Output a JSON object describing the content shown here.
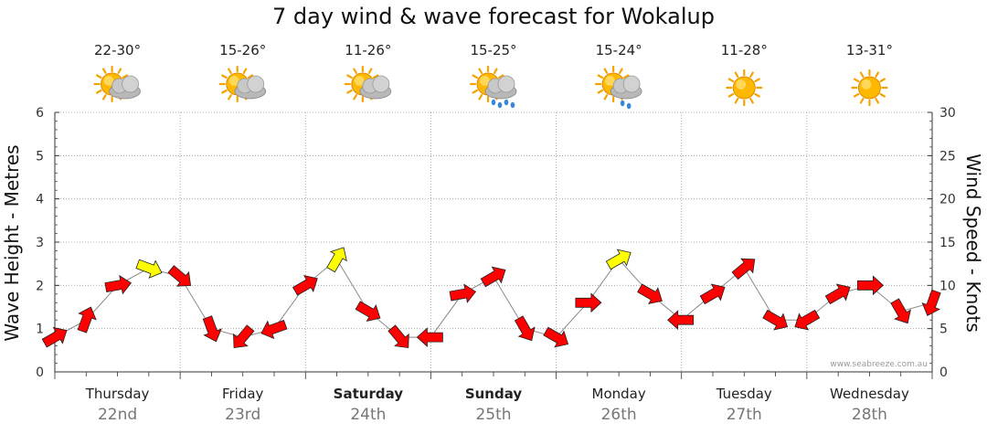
{
  "title": "7 day wind & wave forecast for Wokalup",
  "credit": "www.seabreeze.com.au",
  "colors": {
    "strong_wind": "#ff0000",
    "light_wind": "#ffff00",
    "arrow_outline": "#222222",
    "grid": "#999999",
    "wave_line": "#888888"
  },
  "days": [
    {
      "name": "Thursday",
      "date": "22nd",
      "bold": false,
      "temp": "22-30°",
      "icon": "partly-cloudy-icon"
    },
    {
      "name": "Friday",
      "date": "23rd",
      "bold": false,
      "temp": "15-26°",
      "icon": "partly-cloudy-icon"
    },
    {
      "name": "Saturday",
      "date": "24th",
      "bold": true,
      "temp": "11-26°",
      "icon": "partly-cloudy-icon"
    },
    {
      "name": "Sunday",
      "date": "25th",
      "bold": true,
      "temp": "15-25°",
      "icon": "showers-icon"
    },
    {
      "name": "Monday",
      "date": "26th",
      "bold": false,
      "temp": "15-24°",
      "icon": "light-showers-icon"
    },
    {
      "name": "Tuesday",
      "date": "27th",
      "bold": false,
      "temp": "11-28°",
      "icon": "sunny-icon"
    },
    {
      "name": "Wednesday",
      "date": "28th",
      "bold": false,
      "temp": "13-31°",
      "icon": "sunny-icon"
    }
  ],
  "chart_data": {
    "type": "line",
    "title": "7 day wind & wave forecast for Wokalup",
    "ylabel": "Wave Height - Metres",
    "y2label": "Wind Speed - Knots",
    "ylim": [
      0,
      6
    ],
    "y2lim": [
      0,
      30
    ],
    "yticks": [
      "0",
      "1",
      "2",
      "3",
      "4",
      "5",
      "6"
    ],
    "y2ticks": [
      "0",
      "5",
      "10",
      "15",
      "20",
      "25",
      "30"
    ],
    "x_hours": [
      0,
      6,
      12,
      18,
      24,
      30,
      36,
      42,
      48,
      54,
      60,
      66,
      72,
      78,
      84,
      90,
      96,
      102,
      108,
      114,
      120,
      126,
      132,
      138,
      144,
      150,
      156,
      162,
      168
    ],
    "series": [
      {
        "name": "Wind Speed (knots)",
        "axis": "right",
        "values": [
          4,
          6,
          10,
          12,
          11,
          5,
          4,
          5,
          10,
          13,
          7,
          4,
          4,
          9,
          11,
          5,
          4,
          8,
          13,
          9,
          6,
          9,
          12,
          6,
          6,
          9,
          10,
          7,
          8
        ]
      },
      {
        "name": "Wind Direction (deg, arrow bearing)",
        "axis": "none",
        "values": [
          60,
          20,
          80,
          110,
          130,
          160,
          220,
          250,
          60,
          30,
          120,
          140,
          270,
          80,
          60,
          150,
          120,
          90,
          60,
          120,
          270,
          60,
          50,
          120,
          240,
          60,
          90,
          150,
          200
        ]
      }
    ]
  }
}
